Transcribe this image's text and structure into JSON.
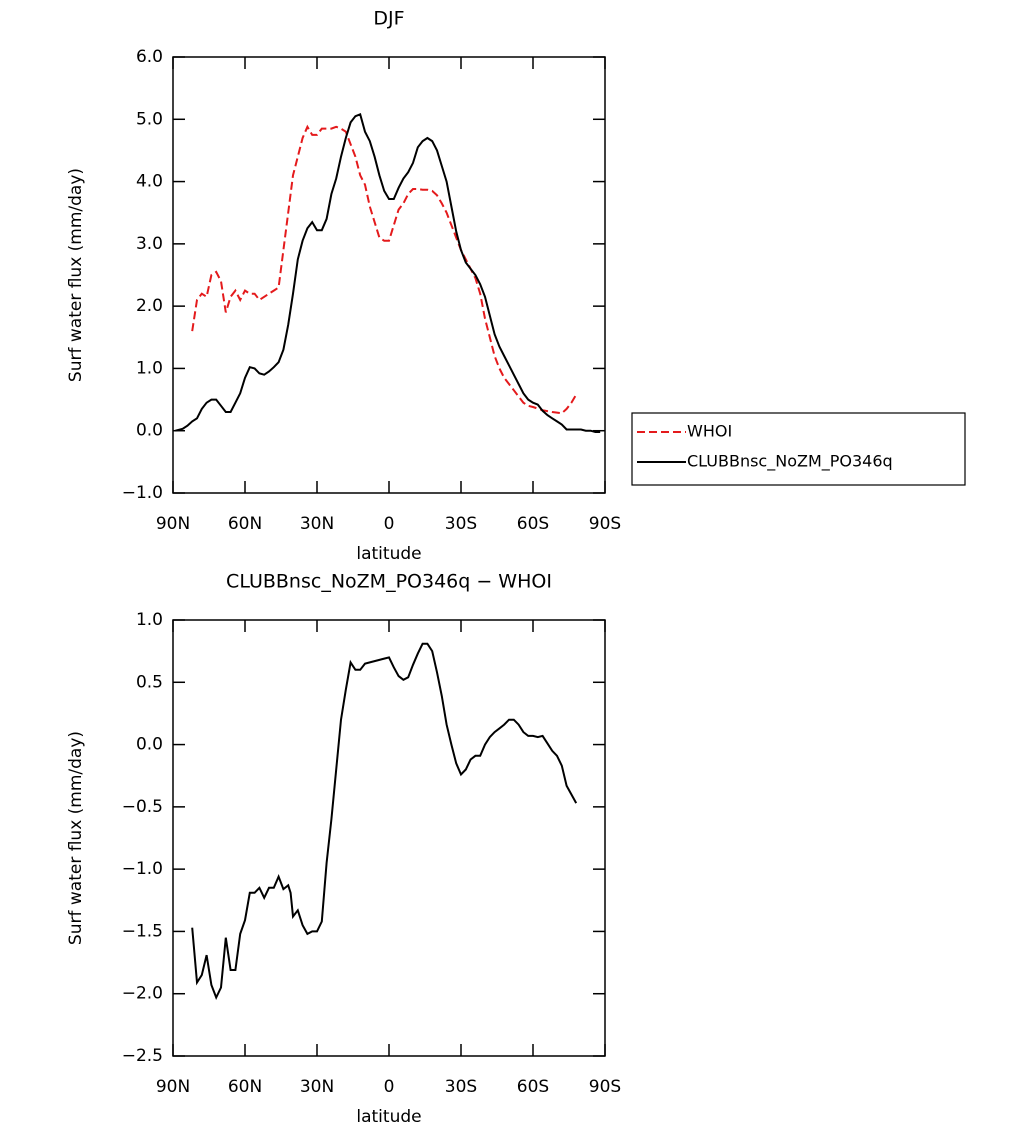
{
  "chart_data": [
    {
      "type": "line",
      "title": "DJF",
      "xlabel": "latitude",
      "ylabel": "Surf water flux (mm/day)",
      "xlim": [
        90,
        -90
      ],
      "xticks": [
        {
          "value": 90,
          "label": "90N"
        },
        {
          "value": 60,
          "label": "60N"
        },
        {
          "value": 30,
          "label": "30N"
        },
        0,
        {
          "value": -30,
          "label": "30S"
        },
        {
          "value": -60,
          "label": "60S"
        },
        {
          "value": -90,
          "label": "90S"
        }
      ],
      "ylim": [
        -1,
        6
      ],
      "yticks": [
        {
          "value": -1,
          "label": "−1.0"
        },
        {
          "value": 0,
          "label": "0.0"
        },
        {
          "value": 1,
          "label": "1.0"
        },
        {
          "value": 2,
          "label": "2.0"
        },
        {
          "value": 3,
          "label": "3.0"
        },
        {
          "value": 4,
          "label": "4.0"
        },
        {
          "value": 5,
          "label": "5.0"
        },
        {
          "value": 6,
          "label": "6.0"
        }
      ],
      "legend": "right",
      "series": [
        {
          "name": "WHOI",
          "color": "#e41a1c",
          "linestyle": "dashed",
          "x": [
            82,
            80,
            78,
            76,
            74,
            72,
            70,
            68,
            66,
            64,
            62,
            60,
            58,
            56,
            54,
            52,
            50,
            48,
            46,
            44,
            42,
            40,
            38,
            36,
            34,
            32,
            30,
            28,
            26,
            24,
            22,
            20,
            18,
            16,
            14,
            12,
            10,
            8,
            6,
            4,
            2,
            0,
            -2,
            -4,
            -6,
            -8,
            -10,
            -12,
            -14,
            -16,
            -18,
            -20,
            -22,
            -24,
            -26,
            -28,
            -30,
            -32,
            -34,
            -36,
            -38,
            -40,
            -42,
            -44,
            -46,
            -48,
            -50,
            -52,
            -54,
            -56,
            -58,
            -60,
            -64,
            -68,
            -72,
            -74,
            -76,
            -78
          ],
          "values": [
            1.6,
            2.1,
            2.2,
            2.15,
            2.5,
            2.55,
            2.4,
            1.9,
            2.15,
            2.25,
            2.1,
            2.25,
            2.2,
            2.2,
            2.1,
            2.15,
            2.2,
            2.25,
            2.3,
            2.9,
            3.5,
            4.1,
            4.4,
            4.7,
            4.88,
            4.75,
            4.75,
            4.85,
            4.85,
            4.85,
            4.88,
            4.85,
            4.8,
            4.6,
            4.4,
            4.1,
            3.95,
            3.6,
            3.35,
            3.1,
            3.05,
            3.05,
            3.3,
            3.55,
            3.65,
            3.8,
            3.88,
            3.88,
            3.87,
            3.87,
            3.85,
            3.78,
            3.65,
            3.5,
            3.3,
            3.1,
            2.9,
            2.75,
            2.6,
            2.45,
            2.2,
            1.8,
            1.5,
            1.2,
            1.0,
            0.85,
            0.75,
            0.65,
            0.55,
            0.45,
            0.4,
            0.38,
            0.33,
            0.3,
            0.28,
            0.35,
            0.45,
            0.58
          ]
        },
        {
          "name": "CLUBBnsc_NoZM_PO346q",
          "color": "#000000",
          "linestyle": "solid",
          "x": [
            89,
            86,
            84,
            82,
            80,
            78,
            76,
            74,
            72,
            70,
            68,
            66,
            64,
            62,
            60,
            58,
            56,
            54,
            52,
            50,
            48,
            46,
            44,
            42,
            40,
            38,
            36,
            34,
            32,
            30,
            28,
            26,
            24,
            22,
            20,
            18,
            16,
            14,
            12,
            10,
            8,
            6,
            4,
            2,
            0,
            -2,
            -4,
            -6,
            -8,
            -10,
            -12,
            -14,
            -16,
            -18,
            -20,
            -22,
            -24,
            -26,
            -28,
            -30,
            -32,
            -34,
            -36,
            -38,
            -40,
            -42,
            -44,
            -46,
            -48,
            -50,
            -52,
            -54,
            -56,
            -58,
            -60,
            -62,
            -64,
            -66,
            -68,
            -70,
            -72,
            -74,
            -76,
            -78,
            -80,
            -82,
            -84,
            -86,
            -88
          ],
          "values": [
            0.0,
            0.03,
            0.08,
            0.15,
            0.2,
            0.35,
            0.45,
            0.5,
            0.5,
            0.4,
            0.3,
            0.3,
            0.45,
            0.6,
            0.85,
            1.02,
            1.0,
            0.92,
            0.9,
            0.95,
            1.02,
            1.1,
            1.3,
            1.7,
            2.2,
            2.75,
            3.05,
            3.25,
            3.35,
            3.22,
            3.22,
            3.4,
            3.8,
            4.05,
            4.4,
            4.7,
            4.95,
            5.05,
            5.08,
            4.8,
            4.65,
            4.4,
            4.1,
            3.85,
            3.72,
            3.72,
            3.9,
            4.05,
            4.15,
            4.3,
            4.55,
            4.65,
            4.7,
            4.65,
            4.5,
            4.25,
            4.0,
            3.6,
            3.2,
            2.9,
            2.7,
            2.6,
            2.5,
            2.35,
            2.15,
            1.85,
            1.55,
            1.35,
            1.2,
            1.05,
            0.9,
            0.75,
            0.6,
            0.5,
            0.45,
            0.42,
            0.32,
            0.25,
            0.2,
            0.15,
            0.1,
            0.02,
            0.02,
            0.02,
            0.02,
            0.0,
            0.0,
            -0.02,
            -0.02
          ]
        }
      ]
    },
    {
      "type": "line",
      "title": "CLUBBnsc_NoZM_PO346q − WHOI",
      "xlabel": "latitude",
      "ylabel": "Surf water flux (mm/day)",
      "xlim": [
        90,
        -90
      ],
      "xticks": [
        {
          "value": 90,
          "label": "90N"
        },
        {
          "value": 60,
          "label": "60N"
        },
        {
          "value": 30,
          "label": "30N"
        },
        0,
        {
          "value": -30,
          "label": "30S"
        },
        {
          "value": -60,
          "label": "60S"
        },
        {
          "value": -90,
          "label": "90S"
        }
      ],
      "ylim": [
        -2.5,
        1
      ],
      "yticks": [
        {
          "value": -2.5,
          "label": "−2.5"
        },
        {
          "value": -2,
          "label": "−2.0"
        },
        {
          "value": -1.5,
          "label": "−1.5"
        },
        {
          "value": -1,
          "label": "−1.0"
        },
        {
          "value": -0.5,
          "label": "−0.5"
        },
        {
          "value": 0,
          "label": "0.0"
        },
        {
          "value": 0.5,
          "label": "0.5"
        },
        {
          "value": 1,
          "label": "1.0"
        }
      ],
      "series": [
        {
          "color": "#000000",
          "linestyle": "solid",
          "x": [
            82,
            80,
            78,
            76,
            74,
            72,
            70,
            68,
            66,
            64,
            62,
            60,
            58,
            56,
            54,
            52,
            50,
            48,
            46,
            44,
            42,
            41,
            40,
            38,
            36,
            34,
            32,
            30,
            28,
            26,
            24,
            22,
            20,
            18,
            16,
            14,
            12,
            10,
            8,
            6,
            4,
            2,
            0,
            -2,
            -4,
            -6,
            -8,
            -10,
            -12,
            -14,
            -16,
            -18,
            -20,
            -22,
            -24,
            -26,
            -28,
            -30,
            -32,
            -34,
            -36,
            -38,
            -40,
            -42,
            -44,
            -46,
            -48,
            -50,
            -52,
            -54,
            -56,
            -58,
            -60,
            -62,
            -64,
            -66,
            -68,
            -70,
            -72,
            -74,
            -78
          ],
          "values": [
            -1.47,
            -1.91,
            -1.85,
            -1.69,
            -1.93,
            -2.03,
            -1.95,
            -1.55,
            -1.81,
            -1.81,
            -1.52,
            -1.41,
            -1.19,
            -1.19,
            -1.15,
            -1.23,
            -1.15,
            -1.15,
            -1.06,
            -1.16,
            -1.13,
            -1.19,
            -1.38,
            -1.33,
            -1.45,
            -1.52,
            -1.5,
            -1.5,
            -1.42,
            -0.95,
            -0.6,
            -0.2,
            0.2,
            0.44,
            0.66,
            0.6,
            0.6,
            0.65,
            0.66,
            0.67,
            0.68,
            0.69,
            0.7,
            0.62,
            0.55,
            0.52,
            0.54,
            0.64,
            0.73,
            0.81,
            0.81,
            0.75,
            0.58,
            0.39,
            0.16,
            0.0,
            -0.15,
            -0.24,
            -0.2,
            -0.12,
            -0.09,
            -0.09,
            0.0,
            0.06,
            0.1,
            0.13,
            0.16,
            0.2,
            0.2,
            0.16,
            0.1,
            0.07,
            0.07,
            0.06,
            0.07,
            0.01,
            -0.05,
            -0.09,
            -0.17,
            -0.33,
            -0.47
          ]
        }
      ]
    }
  ]
}
